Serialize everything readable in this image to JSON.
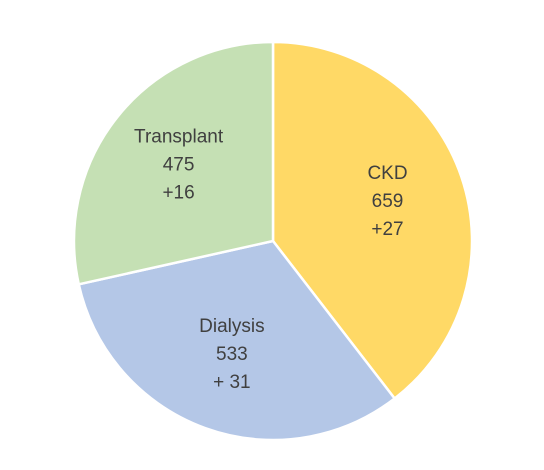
{
  "chart_data": {
    "type": "pie",
    "title": "",
    "start_angle_deg": 0,
    "direction": "clockwise",
    "slices": [
      {
        "category": "CKD",
        "value": 659,
        "change": "+27",
        "color": "#FFD966"
      },
      {
        "category": "Dialysis",
        "value": 533,
        "change": "+ 31",
        "color": "#B4C7E7"
      },
      {
        "category": "Transplant",
        "value": 475,
        "change": "+16",
        "color": "#C5E0B4"
      }
    ]
  }
}
